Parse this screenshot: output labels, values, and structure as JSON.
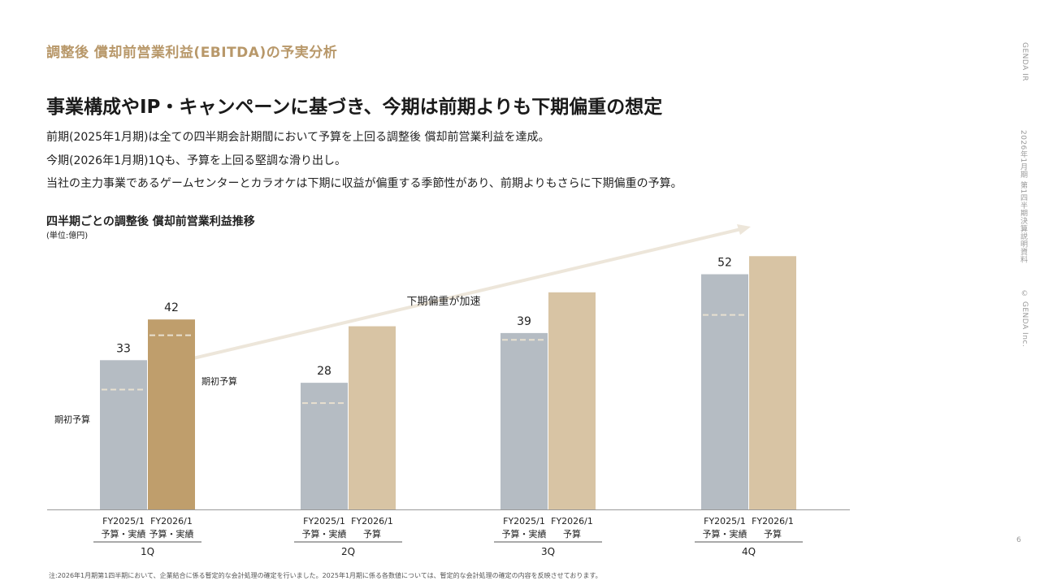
{
  "header": {
    "section_title": "調整後 償却前営業利益(EBITDA)の予実分析",
    "headline": "事業構成やIP・キャンペーンに基づき、今期は前期よりも下期偏重の想定"
  },
  "body": {
    "lines": [
      "前期(2025年1月期)は全ての四半期会計期間において予算を上回る調整後 償却前営業利益を達成。",
      "今期(2026年1月期)1Qも、予算を上回る堅調な滑り出し。",
      "当社の主力事業であるゲームセンターとカラオケは下期に収益が偏重する季節性があり、前期よりもさらに下期偏重の予算。"
    ]
  },
  "side": {
    "brand": "GENDA IR",
    "doc": "2026年1月期 第1四半期決算説明資料",
    "copyright": "© GENDA Inc."
  },
  "page_number": "6",
  "footnote": "注:2026年1月期第1四半期において、企業結合に係る暫定的な会計処理の確定を行いました。2025年1月期に係る各数値については、暫定的な会計処理の確定の内容を反映させております。",
  "chart_data": {
    "type": "bar",
    "title": "四半期ごとの調整後 償却前営業利益推移",
    "unit": "(単位:億円)",
    "categories": [
      "1Q",
      "2Q",
      "3Q",
      "4Q"
    ],
    "ylim": [
      0,
      60
    ],
    "series": [
      {
        "name": "FY2025/1",
        "color": "#b5bcc3",
        "values": [
          33,
          28,
          39,
          52
        ],
        "labels": [
          "33",
          "28",
          "39",
          "52"
        ],
        "budget": [
          26.5,
          23.5,
          37.5,
          43
        ]
      },
      {
        "name": "FY2026/1",
        "color": "#d8c4a4",
        "highlight_color": "#bf9e6c",
        "values": [
          42,
          40.5,
          48,
          56
        ],
        "labels": [
          "42",
          "",
          "",
          ""
        ],
        "budget": [
          38.5,
          null,
          null,
          null
        ]
      }
    ],
    "bar_sublabels": [
      [
        "予算・実績",
        "予算・実績"
      ],
      [
        "予算・実績",
        "予算"
      ],
      [
        "予算・実績",
        "予算"
      ],
      [
        "予算・実績",
        "予算"
      ]
    ],
    "budget_label": "期初予算",
    "trend_label": "下期偏重が加速",
    "colors": {
      "axis": "#9a9a9a",
      "budget_line": "#e8e0d0",
      "arrow": "#ede6da"
    }
  }
}
